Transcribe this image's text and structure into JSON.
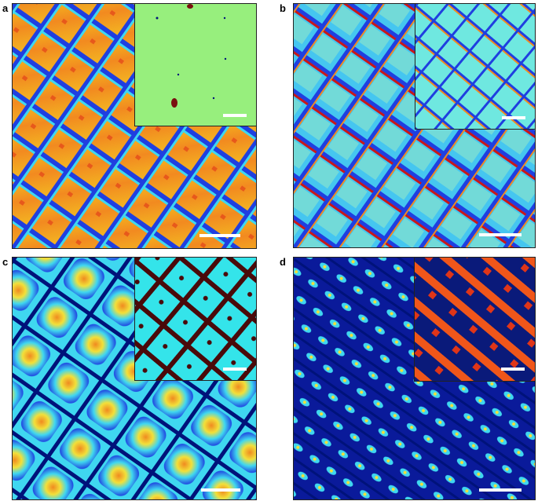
{
  "panels": [
    {
      "label": "a",
      "colormap": "warm-jet",
      "inset_colormap": "flat-green"
    },
    {
      "label": "b",
      "colormap": "blue-jet",
      "inset_colormap": "cyan-jet"
    },
    {
      "label": "c",
      "colormap": "smooth-jet",
      "inset_colormap": "cyan-maroon"
    },
    {
      "label": "d",
      "colormap": "dark-blue-jet",
      "inset_colormap": "orange-navy"
    }
  ],
  "colors": {
    "navy": "#00127a",
    "blue": "#1f3fe0",
    "cyan": "#3fd7f0",
    "green": "#8fe88a",
    "yellow": "#f2e03a",
    "orange": "#f08a20",
    "red": "#c8181a",
    "maroon": "#7a0f10",
    "inset_green": "#97ef7d",
    "inset_cyan": "#34e4ea"
  }
}
